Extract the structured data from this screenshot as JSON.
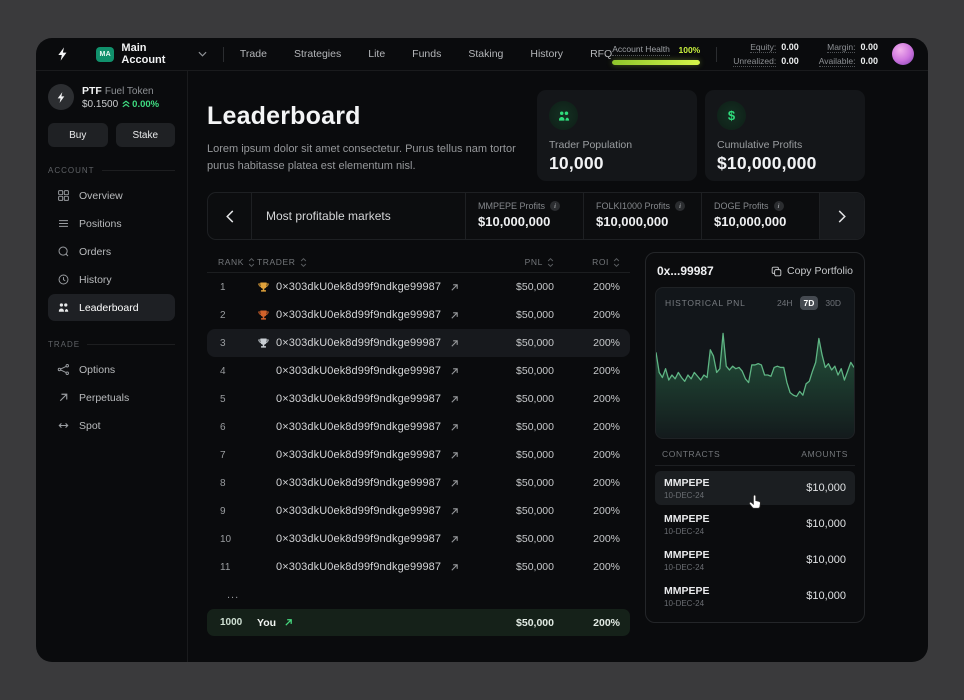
{
  "topbar": {
    "account": {
      "badge": "MA",
      "name": "Main Account"
    },
    "nav": [
      "Trade",
      "Strategies",
      "Lite",
      "Funds",
      "Staking",
      "History",
      "RFQ"
    ],
    "health": {
      "label": "Account Health",
      "value": "100%"
    },
    "stats": [
      {
        "label": "Equity:",
        "value": "0.00"
      },
      {
        "label": "Margin:",
        "value": "0.00"
      },
      {
        "label": "Unrealized:",
        "value": "0.00"
      },
      {
        "label": "Available:",
        "value": "0.00"
      }
    ]
  },
  "sidebar": {
    "token": {
      "symbol": "PTF",
      "name": "Fuel Token",
      "price": "$0.1500",
      "change": "0.00%"
    },
    "buy_label": "Buy",
    "stake_label": "Stake",
    "sections": [
      {
        "title": "ACCOUNT",
        "items": [
          {
            "label": "Overview",
            "icon": "grid-icon",
            "active": false
          },
          {
            "label": "Positions",
            "icon": "layers-icon",
            "active": false
          },
          {
            "label": "Orders",
            "icon": "orders-icon",
            "active": false
          },
          {
            "label": "History",
            "icon": "clock-icon",
            "active": false
          },
          {
            "label": "Leaderboard",
            "icon": "users-icon",
            "active": true
          }
        ]
      },
      {
        "title": "TRADE",
        "items": [
          {
            "label": "Options",
            "icon": "branch-icon",
            "active": false
          },
          {
            "label": "Perpetuals",
            "icon": "arrow-up-right-icon",
            "active": false
          },
          {
            "label": "Spot",
            "icon": "arrows-left-right-icon",
            "active": false
          }
        ]
      }
    ]
  },
  "main": {
    "title": "Leaderboard",
    "subtitle": "Lorem ipsum dolor sit amet consectetur. Purus tellus nam tortor purus habitasse platea est elementum nisl.",
    "stat_cards": [
      {
        "icon": "users-icon",
        "label": "Trader Population",
        "value": "10,000"
      },
      {
        "icon": "dollar-icon",
        "label": "Cumulative Profits",
        "value": "$10,000,000"
      }
    ],
    "carousel": {
      "label": "Most profitable markets",
      "markets": [
        {
          "label": "MMPEPE Profits",
          "value": "$10,000,000"
        },
        {
          "label": "FOLKI1000 Profits",
          "value": "$10,000,000"
        },
        {
          "label": "DOGE Profits",
          "value": "$10,000,000"
        }
      ]
    },
    "table": {
      "headers": [
        "RANK",
        "TRADER",
        "PNL",
        "ROI"
      ],
      "rows": [
        {
          "rank": "1",
          "trophy": "gold",
          "address": "0×303dkU0ek8d99f9ndkge99987",
          "pnl": "$50,000",
          "roi": "200%",
          "highlight": false
        },
        {
          "rank": "2",
          "trophy": "bronze",
          "address": "0×303dkU0ek8d99f9ndkge99987",
          "pnl": "$50,000",
          "roi": "200%",
          "highlight": false
        },
        {
          "rank": "3",
          "trophy": "silver",
          "address": "0×303dkU0ek8d99f9ndkge99987",
          "pnl": "$50,000",
          "roi": "200%",
          "highlight": true
        },
        {
          "rank": "4",
          "trophy": null,
          "address": "0×303dkU0ek8d99f9ndkge99987",
          "pnl": "$50,000",
          "roi": "200%",
          "highlight": false
        },
        {
          "rank": "5",
          "trophy": null,
          "address": "0×303dkU0ek8d99f9ndkge99987",
          "pnl": "$50,000",
          "roi": "200%",
          "highlight": false
        },
        {
          "rank": "6",
          "trophy": null,
          "address": "0×303dkU0ek8d99f9ndkge99987",
          "pnl": "$50,000",
          "roi": "200%",
          "highlight": false
        },
        {
          "rank": "7",
          "trophy": null,
          "address": "0×303dkU0ek8d99f9ndkge99987",
          "pnl": "$50,000",
          "roi": "200%",
          "highlight": false
        },
        {
          "rank": "8",
          "trophy": null,
          "address": "0×303dkU0ek8d99f9ndkge99987",
          "pnl": "$50,000",
          "roi": "200%",
          "highlight": false
        },
        {
          "rank": "9",
          "trophy": null,
          "address": "0×303dkU0ek8d99f9ndkge99987",
          "pnl": "$50,000",
          "roi": "200%",
          "highlight": false
        },
        {
          "rank": "10",
          "trophy": null,
          "address": "0×303dkU0ek8d99f9ndkge99987",
          "pnl": "$50,000",
          "roi": "200%",
          "highlight": false
        },
        {
          "rank": "11",
          "trophy": null,
          "address": "0×303dkU0ek8d99f9ndkge99987",
          "pnl": "$50,000",
          "roi": "200%",
          "highlight": false
        }
      ],
      "ellipsis": "...",
      "you_row": {
        "rank": "1000",
        "label": "You",
        "pnl": "$50,000",
        "roi": "200%"
      }
    }
  },
  "panel": {
    "address": "0x...99987",
    "copy_label": "Copy Portfolio",
    "chart_header": {
      "title": "HISTORICAL PNL",
      "ranges": [
        "24H",
        "7D",
        "30D"
      ],
      "selected": "7D"
    },
    "contracts": {
      "headers": [
        "CONTRACTS",
        "AMOUNTS"
      ],
      "rows": [
        {
          "name": "MMPEPE",
          "date": "10-DEC-24",
          "amount": "$10,000",
          "highlight": true
        },
        {
          "name": "MMPEPE",
          "date": "10-DEC-24",
          "amount": "$10,000",
          "highlight": false
        },
        {
          "name": "MMPEPE",
          "date": "10-DEC-24",
          "amount": "$10,000",
          "highlight": false
        },
        {
          "name": "MMPEPE",
          "date": "10-DEC-24",
          "amount": "$10,000",
          "highlight": false
        }
      ]
    }
  },
  "chart_data": {
    "type": "area",
    "title": "HISTORICAL PNL",
    "range_selected": "7D",
    "axes_visible": false,
    "line_color": "#5fb584",
    "fill_color": "#2f7c52",
    "values": [
      68,
      52,
      48,
      55,
      46,
      50,
      47,
      52,
      48,
      45,
      50,
      47,
      52,
      49,
      46,
      50,
      48,
      70,
      65,
      52,
      55,
      83,
      57,
      54,
      57,
      55,
      56,
      53,
      47,
      44,
      58,
      58,
      59,
      58,
      50,
      50,
      49,
      56,
      57,
      56,
      56,
      44,
      36,
      34,
      33,
      37,
      34,
      43,
      45,
      53,
      60,
      79,
      66,
      56,
      59,
      54,
      57,
      50,
      55,
      46,
      53,
      60,
      56
    ]
  },
  "colors": {
    "accent_green": "#3fdc81",
    "health_green": "#c9f13e",
    "trophy_gold": "#e2a33b",
    "trophy_bronze": "#d2622a",
    "trophy_silver": "#c9ced3",
    "you_row_bg": "#152119"
  }
}
